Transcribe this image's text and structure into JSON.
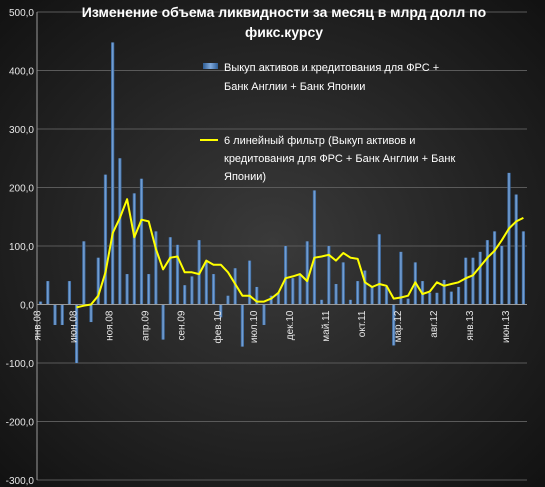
{
  "chart_data": {
    "type": "bar",
    "title": "Изменение объема ликвидности за месяц в млрд долл по фикс.курсу",
    "title_lines": [
      "Изменение объема ликвидности за месяц в млрд долл по",
      "фикс.курсу"
    ],
    "ylim": [
      -300,
      500
    ],
    "y_ticks": [
      -300,
      -200,
      -100,
      0,
      100,
      200,
      300,
      400,
      500
    ],
    "y_tick_labels": [
      "-300,0",
      "-200,0",
      "-100,0",
      "0,0",
      "100,0",
      "200,0",
      "300,0",
      "400,0",
      "500,0"
    ],
    "grid": true,
    "legend_position": "top-right",
    "x_tick_labels": [
      {
        "index": 0,
        "label": "янв.08"
      },
      {
        "index": 5,
        "label": "июн.08"
      },
      {
        "index": 10,
        "label": "ноя.08"
      },
      {
        "index": 15,
        "label": "апр.09"
      },
      {
        "index": 20,
        "label": "сен.09"
      },
      {
        "index": 25,
        "label": "фев.10"
      },
      {
        "index": 30,
        "label": "июл.10"
      },
      {
        "index": 35,
        "label": "дек.10"
      },
      {
        "index": 40,
        "label": "май.11"
      },
      {
        "index": 45,
        "label": "окт.11"
      },
      {
        "index": 50,
        "label": "мар.12"
      },
      {
        "index": 55,
        "label": "авг.12"
      },
      {
        "index": 60,
        "label": "янв.13"
      },
      {
        "index": 65,
        "label": "июн.13"
      }
    ],
    "series": [
      {
        "name": "Выкуп активов и кредитования для ФРС + Банк Англии + Банк Японии",
        "legend_lines": [
          "Выкуп активов и кредитования для ФРС +",
          "Банк Англии + Банк Японии"
        ],
        "kind": "bar",
        "color": "#4f81bd",
        "values": [
          5,
          40,
          -35,
          -35,
          40,
          -100,
          108,
          -30,
          80,
          222,
          448,
          250,
          52,
          190,
          215,
          52,
          125,
          -60,
          115,
          102,
          33,
          48,
          110,
          72,
          52,
          -22,
          15,
          62,
          -72,
          75,
          30,
          -35,
          15,
          20,
          100,
          45,
          50,
          108,
          195,
          8,
          100,
          35,
          72,
          8,
          40,
          58,
          30,
          120,
          30,
          -70,
          90,
          10,
          72,
          40,
          20,
          20,
          42,
          22,
          30,
          80,
          80,
          90,
          110,
          125,
          100,
          225,
          188,
          125
        ]
      },
      {
        "name": "6 линейный фильтр (Выкуп активов и кредитования для ФРС + Банк Англии + Банк Японии)",
        "legend_lines": [
          "6 линейный фильтр (Выкуп активов и",
          "кредитования для ФРС + Банк Англии + Банк",
          "Японии)"
        ],
        "kind": "line",
        "color": "#ffff00",
        "values": [
          null,
          null,
          null,
          null,
          null,
          -5,
          -2,
          0,
          15,
          55,
          122,
          148,
          180,
          115,
          145,
          142,
          95,
          60,
          80,
          82,
          55,
          55,
          52,
          75,
          68,
          68,
          55,
          35,
          15,
          15,
          5,
          5,
          10,
          20,
          45,
          48,
          52,
          40,
          80,
          82,
          85,
          75,
          88,
          80,
          78,
          38,
          30,
          35,
          32,
          10,
          12,
          15,
          38,
          18,
          22,
          38,
          32,
          35,
          38,
          45,
          50,
          65,
          80,
          92,
          110,
          130,
          142,
          148
        ]
      }
    ]
  }
}
